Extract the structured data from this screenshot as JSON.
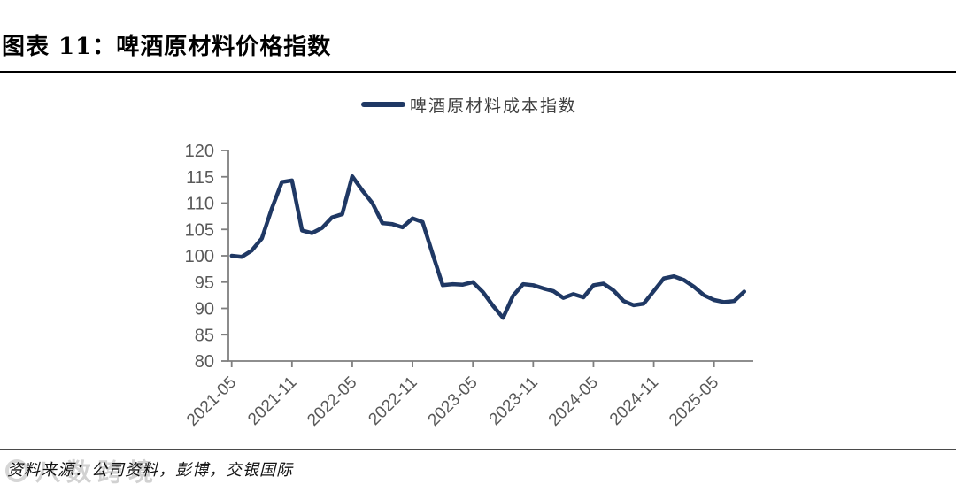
{
  "figure": {
    "title": "图表 11：啤酒原材料价格指数",
    "source_note": "资料来源：公司资料，彭博，交银国际",
    "watermark": "八数跨境"
  },
  "chart_data": {
    "type": "line",
    "title": "图表 11：啤酒原材料价格指数",
    "legend_position": "top-center",
    "grid": false,
    "xlabel": "",
    "ylabel": "",
    "ylim": [
      80,
      120
    ],
    "yticks": [
      80,
      85,
      90,
      95,
      100,
      105,
      110,
      115,
      120
    ],
    "xtick_labels": [
      "2021-05",
      "2021-11",
      "2022-05",
      "2022-11",
      "2023-05",
      "2023-11",
      "2024-05",
      "2024-11",
      "2025-05"
    ],
    "axis_color": "#7f7f7f",
    "tick_label_color": "#595959",
    "x": [
      "2021-05",
      "2021-06",
      "2021-07",
      "2021-08",
      "2021-09",
      "2021-10",
      "2021-11",
      "2021-12",
      "2022-01",
      "2022-02",
      "2022-03",
      "2022-04",
      "2022-05",
      "2022-06",
      "2022-07",
      "2022-08",
      "2022-09",
      "2022-10",
      "2022-11",
      "2022-12",
      "2023-01",
      "2023-02",
      "2023-03",
      "2023-04",
      "2023-05",
      "2023-06",
      "2023-07",
      "2023-08",
      "2023-09",
      "2023-10",
      "2023-11",
      "2023-12",
      "2024-01",
      "2024-02",
      "2024-03",
      "2024-04",
      "2024-05",
      "2024-06",
      "2024-07",
      "2024-08",
      "2024-09",
      "2024-10",
      "2024-11",
      "2024-12",
      "2025-01",
      "2025-02",
      "2025-03",
      "2025-04",
      "2025-05",
      "2025-06",
      "2025-07",
      "2025-08"
    ],
    "series": [
      {
        "name": "啤酒原材料成本指数",
        "color": "#1f3864",
        "values": [
          100.0,
          99.8,
          101.0,
          103.3,
          109.0,
          114.0,
          114.3,
          104.8,
          104.3,
          105.3,
          107.3,
          107.9,
          115.1,
          112.4,
          110.0,
          106.2,
          106.0,
          105.4,
          107.1,
          106.4,
          100.3,
          94.4,
          94.6,
          94.5,
          95.0,
          93.1,
          90.5,
          88.2,
          92.4,
          94.6,
          94.4,
          93.8,
          93.3,
          92.0,
          92.7,
          92.1,
          94.4,
          94.7,
          93.4,
          91.4,
          90.6,
          90.9,
          93.3,
          95.7,
          96.1,
          95.4,
          94.1,
          92.5,
          91.6,
          91.2,
          91.4,
          93.2
        ]
      }
    ]
  }
}
